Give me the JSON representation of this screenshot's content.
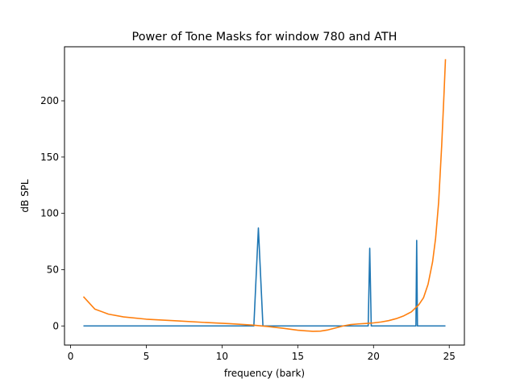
{
  "chart_data": {
    "type": "line",
    "title": "Power of Tone Masks for window 780 and ATH",
    "xlabel": "frequency (bark)",
    "ylabel": "dB SPL",
    "xlim": [
      -0.4,
      26.0
    ],
    "ylim": [
      -17,
      248
    ],
    "xticks": [
      0,
      5,
      10,
      15,
      20,
      25
    ],
    "yticks": [
      0,
      50,
      100,
      150,
      200
    ],
    "grid": false,
    "series": [
      {
        "color": "#1f77b4",
        "x": [
          0.85,
          12.1,
          12.4,
          12.7,
          19.65,
          19.75,
          19.85,
          22.8,
          22.85,
          22.9,
          24.75
        ],
        "y": [
          0,
          0,
          87,
          0,
          0,
          69,
          0,
          0,
          76,
          0,
          0
        ]
      },
      {
        "color": "#ff7f0e",
        "x": [
          0.85,
          1.6,
          2.5,
          3.5,
          5,
          7,
          9,
          10.5,
          12,
          13,
          14,
          15,
          16,
          16.5,
          17,
          17.5,
          18,
          18.5,
          19,
          19.5,
          20,
          20.5,
          21,
          21.5,
          22,
          22.5,
          23,
          23.3,
          23.6,
          23.9,
          24.1,
          24.3,
          24.5,
          24.65,
          24.75
        ],
        "y": [
          26,
          15,
          10.5,
          8,
          6,
          4.5,
          3,
          2,
          0.8,
          -0.5,
          -2,
          -3.8,
          -4.8,
          -4.6,
          -3.5,
          -1.8,
          0,
          1.2,
          1.8,
          2.2,
          2.7,
          3.5,
          4.7,
          6.5,
          9,
          12.5,
          19,
          25,
          37,
          57,
          78,
          110,
          160,
          205,
          237
        ]
      }
    ]
  }
}
